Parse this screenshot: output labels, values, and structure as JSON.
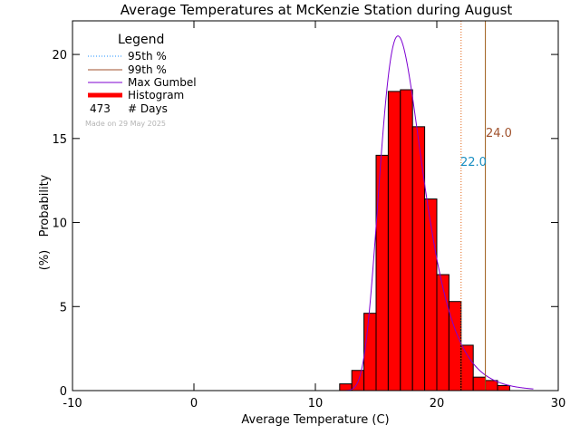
{
  "chart_data": {
    "type": "bar",
    "title": "Average Temperatures at McKenzie Station during August",
    "xlabel": "Average Temperature (C)",
    "ylabel": "Probability",
    "ylabel_units": "(%)",
    "xlim": [
      -10,
      30
    ],
    "ylim": [
      0,
      22
    ],
    "xticks": [
      -10,
      0,
      10,
      20,
      30
    ],
    "yticks": [
      0,
      5,
      10,
      15,
      20
    ],
    "histogram": {
      "bin_width": 1,
      "bins": [
        {
          "x0": 12,
          "value": 0.4
        },
        {
          "x0": 13,
          "value": 1.2
        },
        {
          "x0": 14,
          "value": 4.6
        },
        {
          "x0": 15,
          "value": 14.0
        },
        {
          "x0": 16,
          "value": 17.8
        },
        {
          "x0": 17,
          "value": 17.9
        },
        {
          "x0": 18,
          "value": 15.7
        },
        {
          "x0": 19,
          "value": 11.4
        },
        {
          "x0": 20,
          "value": 6.9
        },
        {
          "x0": 21,
          "value": 5.3
        },
        {
          "x0": 22,
          "value": 2.7
        },
        {
          "x0": 23,
          "value": 0.8
        },
        {
          "x0": 24,
          "value": 0.6
        },
        {
          "x0": 25,
          "value": 0.3
        }
      ],
      "color": "#ff0000"
    },
    "gumbel": {
      "mu": 16.8,
      "beta": 1.75,
      "peak": 21.1,
      "x_range": [
        12.5,
        28
      ],
      "color": "#7d00d2"
    },
    "percentile_95": {
      "value": 22.0,
      "label": "22.0",
      "color": "#e06010",
      "label_color": "#1a8fc2"
    },
    "percentile_99": {
      "value": 24.0,
      "label": "24.0",
      "color": "#9b5a14",
      "label_color": "#a0522d"
    },
    "legend": {
      "title": "Legend",
      "items": [
        {
          "label": "95th %",
          "style": "dotted",
          "color": "#1e90ff"
        },
        {
          "label": "99th %",
          "style": "solid",
          "color": "#a0522d"
        },
        {
          "label": "Max Gumbel",
          "style": "solid",
          "color": "#7d00d2"
        },
        {
          "label": "Histogram",
          "style": "thick",
          "color": "#ff0000"
        }
      ],
      "days_count": "473",
      "days_label": "# Days",
      "made_on": "Made on 29 May 2025"
    }
  }
}
